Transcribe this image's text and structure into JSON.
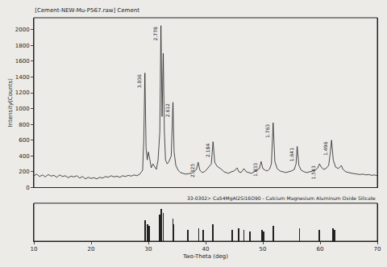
{
  "chart_data": {
    "type": "line",
    "title": "[Cement-NEW-Mu-P567.raw] Cement",
    "x_label": "Two-Theta (deg)",
    "y_label": "Intensity(Counts)",
    "color": "#222222",
    "xlim": [
      10,
      70
    ],
    "xticks": [
      10,
      20,
      30,
      40,
      50,
      60,
      70
    ],
    "ylim": [
      0,
      2150
    ],
    "yticks": [
      0,
      200,
      400,
      600,
      800,
      1000,
      1200,
      1400,
      1600,
      1800,
      2000
    ],
    "grid": false,
    "x": [
      10,
      10.5,
      11,
      11.5,
      12,
      12.5,
      13,
      13.5,
      14,
      14.5,
      15,
      15.5,
      16,
      16.5,
      17,
      17.5,
      18,
      18.5,
      19,
      19.5,
      20,
      20.5,
      21,
      21.5,
      22,
      22.5,
      23,
      23.5,
      24,
      24.5,
      25,
      25.5,
      26,
      26.5,
      27,
      27.5,
      28,
      28.5,
      29,
      29.2,
      29.4,
      29.6,
      29.8,
      30.0,
      30.2,
      30.5,
      30.8,
      31.1,
      31.4,
      31.7,
      32.0,
      32.2,
      32.4,
      32.6,
      32.8,
      33.0,
      33.3,
      33.6,
      34.0,
      34.3,
      34.5,
      34.8,
      35.2,
      35.6,
      36.0,
      36.5,
      37,
      37.5,
      38,
      38.4,
      38.7,
      39.0,
      39.4,
      39.8,
      40.2,
      40.6,
      41.0,
      41.3,
      41.6,
      42.0,
      42.4,
      42.8,
      43.2,
      43.6,
      44.0,
      44.5,
      45.0,
      45.5,
      45.8,
      46.2,
      46.7,
      47.1,
      47.5,
      48,
      48.5,
      49,
      49.4,
      49.7,
      50.0,
      50.4,
      50.8,
      51.2,
      51.5,
      51.8,
      52.1,
      52.5,
      53,
      53.5,
      54,
      54.5,
      55,
      55.5,
      55.8,
      56.0,
      56.3,
      56.7,
      57.2,
      57.7,
      58.2,
      58.7,
      59.2,
      59.6,
      59.9,
      60.2,
      60.6,
      61.0,
      61.5,
      61.8,
      62.0,
      62.3,
      62.7,
      63.2,
      63.7,
      64.0,
      64.5,
      65,
      65.5,
      66,
      66.5,
      67,
      67.5,
      68,
      68.5,
      69,
      69.5,
      70
    ],
    "values": [
      150,
      170,
      140,
      160,
      135,
      165,
      145,
      155,
      130,
      160,
      140,
      150,
      125,
      145,
      135,
      150,
      120,
      140,
      110,
      130,
      115,
      125,
      110,
      130,
      120,
      140,
      130,
      150,
      135,
      145,
      130,
      150,
      140,
      155,
      145,
      160,
      150,
      170,
      220,
      600,
      1450,
      500,
      350,
      450,
      380,
      250,
      300,
      260,
      230,
      350,
      700,
      2050,
      900,
      1700,
      700,
      350,
      300,
      330,
      400,
      1080,
      450,
      280,
      220,
      190,
      180,
      170,
      175,
      180,
      200,
      230,
      320,
      220,
      190,
      200,
      230,
      260,
      300,
      580,
      320,
      270,
      250,
      230,
      200,
      190,
      180,
      200,
      210,
      250,
      200,
      190,
      240,
      200,
      190,
      180,
      200,
      220,
      240,
      330,
      240,
      220,
      210,
      240,
      300,
      820,
      330,
      240,
      210,
      200,
      190,
      200,
      210,
      230,
      300,
      520,
      280,
      220,
      200,
      190,
      200,
      210,
      220,
      250,
      300,
      260,
      230,
      240,
      280,
      450,
      600,
      350,
      260,
      240,
      280,
      230,
      200,
      190,
      180,
      175,
      170,
      165,
      170,
      160,
      165,
      155,
      160,
      150
    ],
    "annotations": [
      {
        "x": 29.4,
        "y": 1450,
        "text": "3.036"
      },
      {
        "x": 32.2,
        "y": 2050,
        "text": "2.778"
      },
      {
        "x": 34.3,
        "y": 1080,
        "text": "2.612"
      },
      {
        "x": 38.7,
        "y": 320,
        "text": "2.325"
      },
      {
        "x": 41.3,
        "y": 580,
        "text": "2.184"
      },
      {
        "x": 49.7,
        "y": 330,
        "text": "1.833"
      },
      {
        "x": 51.8,
        "y": 820,
        "text": "1.763"
      },
      {
        "x": 56.0,
        "y": 520,
        "text": "1.641"
      },
      {
        "x": 59.9,
        "y": 300,
        "text": "1.543"
      },
      {
        "x": 62.0,
        "y": 600,
        "text": "1.496"
      }
    ],
    "reference": {
      "label": "33-0302> Ca54MgAl2Si16O90 - Calcium Magnesium Aluminum Oxide Silicate",
      "y2lim": [
        0,
        100
      ],
      "x": [
        29.4,
        29.9,
        30.1,
        32.0,
        32.2,
        32.6,
        34.3,
        34.4,
        36.9,
        38.8,
        39.6,
        41.3,
        44.6,
        45.8,
        46.7,
        47.7,
        49.8,
        50.2,
        51.8,
        56.4,
        59.9,
        62.3,
        62.5
      ],
      "values": [
        55,
        45,
        40,
        70,
        85,
        75,
        60,
        45,
        30,
        35,
        30,
        45,
        30,
        35,
        30,
        25,
        30,
        25,
        40,
        35,
        30,
        35,
        30
      ]
    }
  }
}
